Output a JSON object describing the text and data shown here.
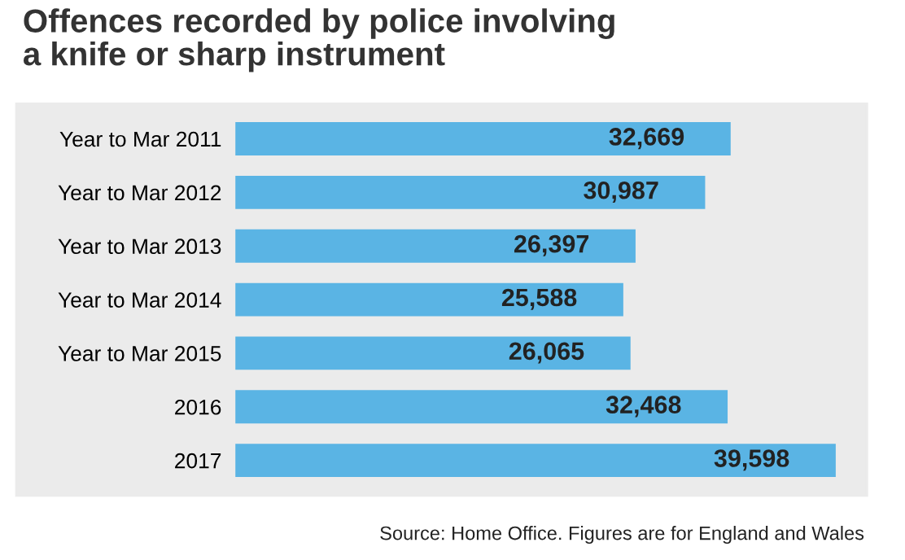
{
  "chart_data": {
    "type": "bar",
    "orientation": "horizontal",
    "title": "Offences recorded by police involving\na knife or sharp instrument",
    "categories": [
      "Year to Mar 2011",
      "Year to Mar 2012",
      "Year to Mar 2013",
      "Year to Mar 2014",
      "Year to Mar 2015",
      "2016",
      "2017"
    ],
    "values": [
      32669,
      30987,
      26397,
      25588,
      26065,
      32468,
      39598
    ],
    "value_labels": [
      "32,669",
      "30,987",
      "26,397",
      "25,588",
      "26,065",
      "32,468",
      "39,598"
    ],
    "color": "#5ab4e4",
    "grid": false,
    "legend": false,
    "annotations": [
      "Source: Home Office. Figures are for England and Wales"
    ]
  }
}
